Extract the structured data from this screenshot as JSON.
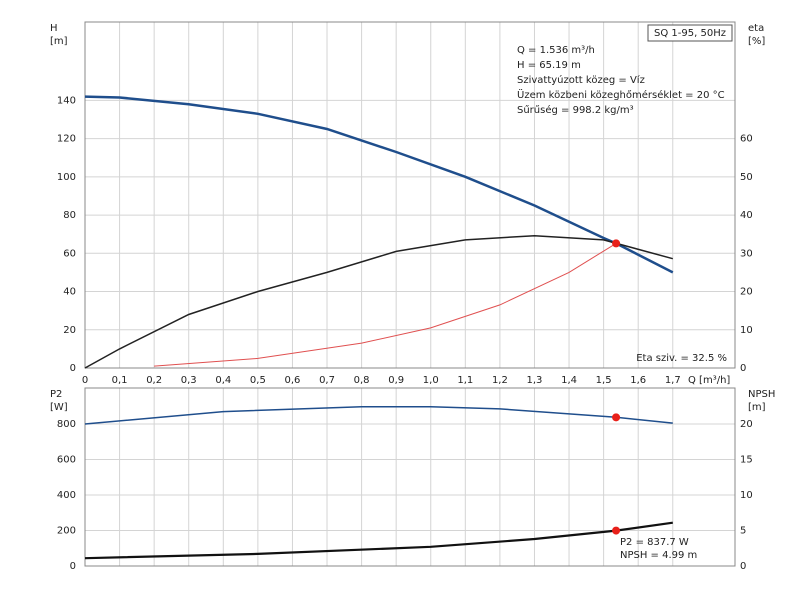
{
  "chart_data": [
    {
      "type": "line",
      "grid": true,
      "xlim": [
        0,
        1.88
      ],
      "xticks": [
        0,
        {
          "value": 0.1,
          "label": "0,1"
        },
        {
          "value": 0.2,
          "label": "0,2"
        },
        {
          "value": 0.3,
          "label": "0,3"
        },
        {
          "value": 0.4,
          "label": "0,4"
        },
        {
          "value": 0.5,
          "label": "0,5"
        },
        {
          "value": 0.6,
          "label": "0,6"
        },
        {
          "value": 0.7,
          "label": "0,7"
        },
        {
          "value": 0.8,
          "label": "0,8"
        },
        {
          "value": 0.9,
          "label": "0,9"
        },
        {
          "value": 1.0,
          "label": "1,0"
        },
        {
          "value": 1.1,
          "label": "1,1"
        },
        {
          "value": 1.2,
          "label": "1,2"
        },
        {
          "value": 1.3,
          "label": "1,3"
        },
        {
          "value": 1.4,
          "label": "1,4"
        },
        {
          "value": 1.5,
          "label": "1,5"
        },
        {
          "value": 1.6,
          "label": "1,6"
        },
        {
          "value": 1.7,
          "label": "1,7"
        }
      ],
      "ylim": [
        0,
        181
      ],
      "yticks": [
        0,
        20,
        40,
        60,
        80,
        100,
        120,
        140
      ],
      "y2lim": [
        0,
        90.5
      ],
      "y2ticks": [
        0,
        10,
        20,
        30,
        40,
        50,
        60
      ],
      "y_label": [
        "H",
        "[m]"
      ],
      "y2_label": [
        "eta",
        "[%]"
      ],
      "x_label": "Q [m³/h]",
      "title": "SQ 1-95, 50Hz",
      "info": [
        "Q = 1.536 m³/h",
        "H = 65.19 m",
        "Szivattyúzott közeg = Víz",
        "Üzem közbeni közeghőmérséklet = 20 °C",
        "Sűrűség = 998.2 kg/m³"
      ],
      "note": "Eta sziv. = 32.5 %",
      "series": [
        {
          "color": "#1f4e8c",
          "width": 2.5,
          "x": [
            0,
            0.1,
            0.3,
            0.5,
            0.7,
            0.9,
            1.1,
            1.3,
            1.5,
            1.536,
            1.7
          ],
          "values": [
            142,
            141.5,
            138,
            133,
            125,
            113,
            100,
            85,
            68,
            65.19,
            50
          ]
        },
        {
          "color": "#222222",
          "width": 1.5,
          "axis": "y2",
          "x": [
            0,
            0.1,
            0.3,
            0.5,
            0.7,
            0.9,
            1.1,
            1.3,
            1.5,
            1.7
          ],
          "values": [
            0,
            5,
            14,
            20,
            25,
            30.5,
            33.5,
            34.6,
            33.5,
            28.6
          ]
        },
        {
          "color": "#e05050",
          "width": 1,
          "x": [
            0.2,
            0.5,
            0.8,
            1.0,
            1.2,
            1.4,
            1.536
          ],
          "values": [
            1,
            5,
            13,
            21,
            33,
            50,
            65.19
          ]
        },
        {
          "color": "#e8201a",
          "marker": true,
          "x": [
            1.536
          ],
          "values": [
            65.19
          ]
        }
      ]
    },
    {
      "type": "line",
      "grid": true,
      "xlim": [
        0,
        1.88
      ],
      "xticks": [
        0,
        0.1,
        0.2,
        0.3,
        0.4,
        0.5,
        0.6,
        0.7,
        0.8,
        0.9,
        1.0,
        1.1,
        1.2,
        1.3,
        1.4,
        1.5,
        1.6,
        1.7
      ],
      "ylim": [
        0,
        1003
      ],
      "yticks": [
        0,
        200,
        400,
        600,
        800
      ],
      "y2lim": [
        0,
        25.07
      ],
      "y2ticks": [
        0,
        5,
        10,
        15,
        20
      ],
      "y_label": [
        "P2",
        "[W]"
      ],
      "y2_label": [
        "NPSH",
        "[m]"
      ],
      "info": [
        "P2 = 837.7 W",
        "NPSH = 4.99 m"
      ],
      "series": [
        {
          "color": "#1f4e8c",
          "width": 1.5,
          "x": [
            0,
            0.4,
            0.8,
            1.0,
            1.2,
            1.536,
            1.7
          ],
          "values": [
            800,
            870,
            897,
            897,
            885,
            837.7,
            805
          ]
        },
        {
          "color": "#111111",
          "width": 2.2,
          "axis": "y2",
          "x": [
            0,
            0.5,
            1.0,
            1.3,
            1.536,
            1.7
          ],
          "values": [
            1.1,
            1.7,
            2.7,
            3.8,
            4.99,
            6.1
          ]
        },
        {
          "color": "#e8201a",
          "marker": true,
          "x": [
            1.536
          ],
          "values": [
            837.7
          ]
        },
        {
          "color": "#e8201a",
          "marker": true,
          "axis": "y2",
          "x": [
            1.536
          ],
          "values": [
            4.99
          ]
        }
      ]
    }
  ]
}
